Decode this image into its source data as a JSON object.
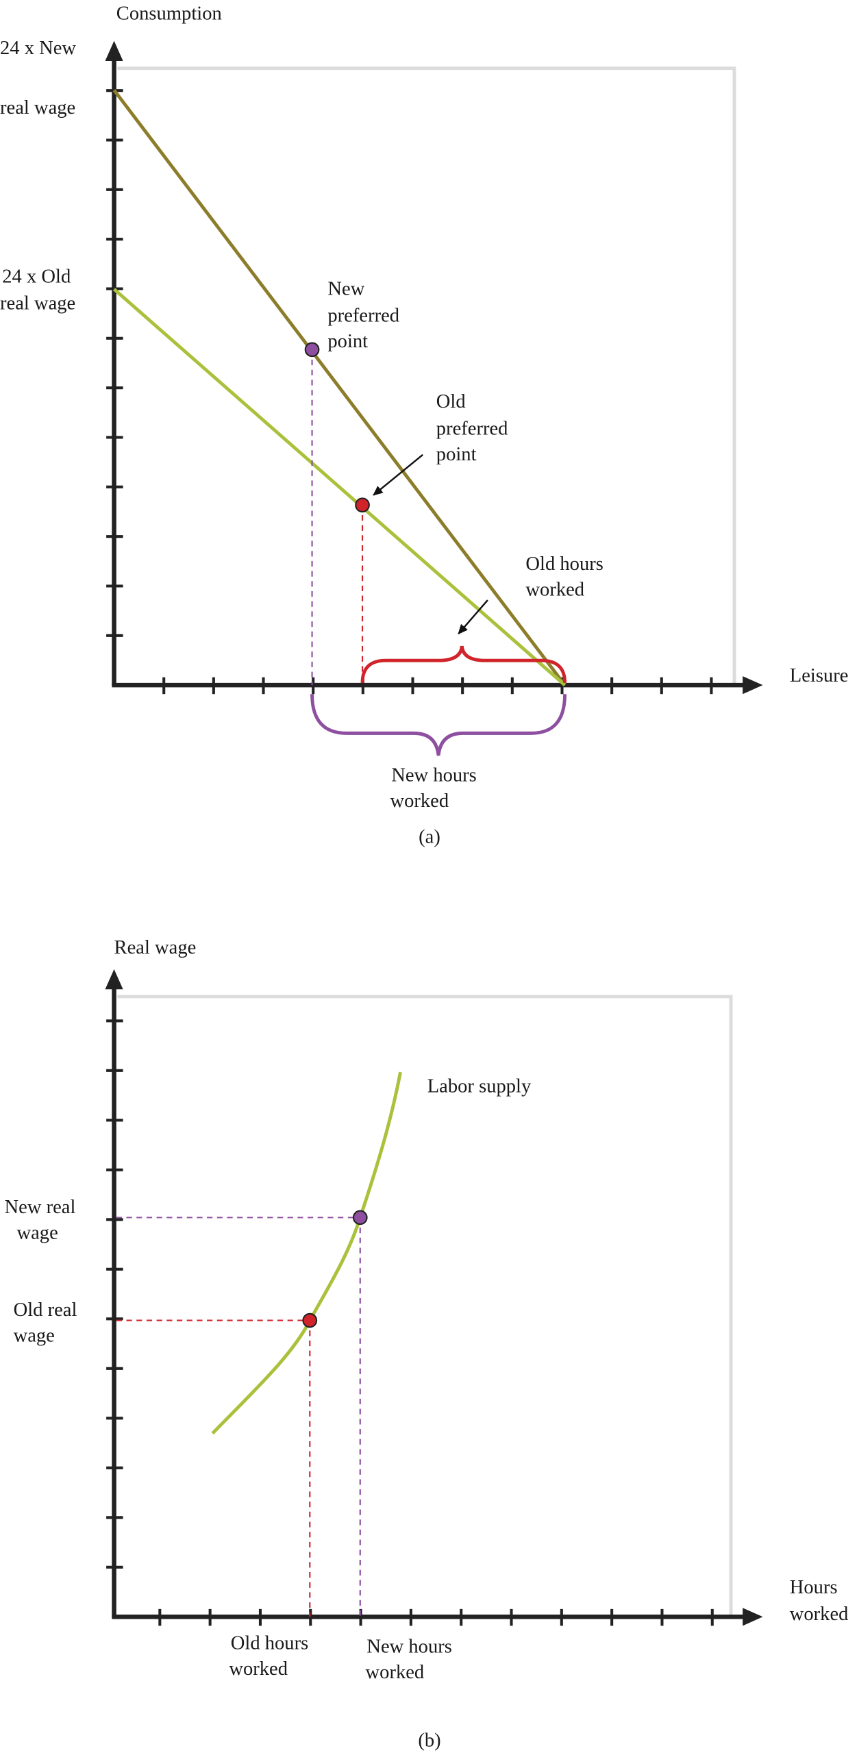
{
  "panel_a": {
    "y_axis_label": "Consumption",
    "x_axis_label": "Leisure",
    "new_intercept_label": [
      "24 x New",
      "real wage"
    ],
    "old_intercept_label": [
      "24 x Old",
      "real wage"
    ],
    "new_point_label": [
      "New",
      "preferred",
      "point"
    ],
    "old_point_label": [
      "Old",
      "preferred",
      "point"
    ],
    "old_hours_label": [
      "Old hours",
      "worked"
    ],
    "new_hours_label": [
      "New hours",
      "worked"
    ],
    "caption": "(a)"
  },
  "panel_b": {
    "y_axis_label": "Real wage",
    "x_axis_label": [
      "Hours",
      "worked"
    ],
    "curve_label": "Labor supply",
    "new_wage_label": [
      "New real",
      "wage"
    ],
    "old_wage_label": [
      "Old real",
      "wage"
    ],
    "old_hours_label": [
      "Old hours",
      "worked"
    ],
    "new_hours_label": [
      "New hours",
      "worked"
    ],
    "caption": "(b)"
  }
}
